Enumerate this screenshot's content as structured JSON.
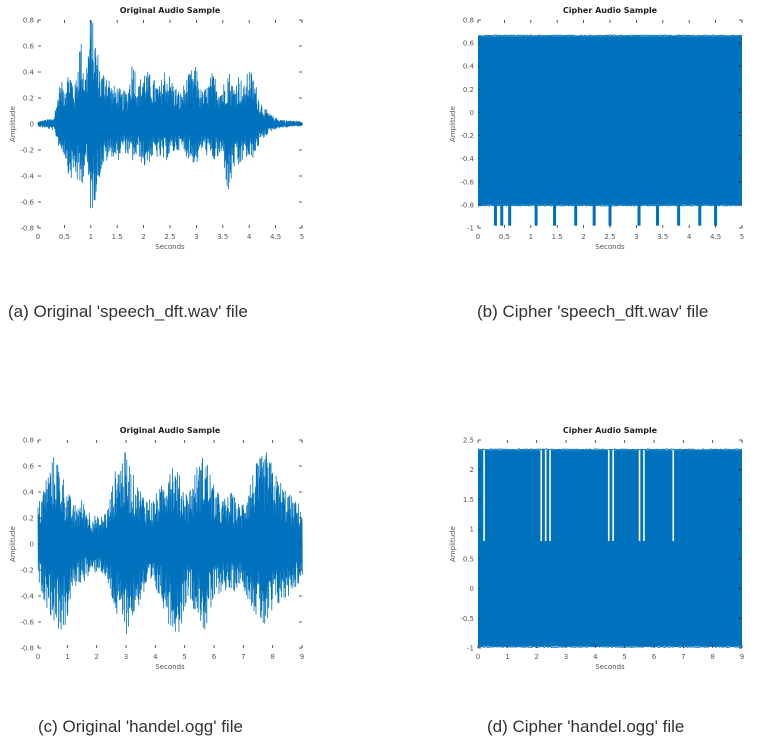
{
  "chart_data": [
    {
      "id": "a",
      "type": "line",
      "title": "Original Audio Sample",
      "xlabel": "Seconds",
      "ylabel": "Amplitude",
      "xlim": [
        0,
        5
      ],
      "ylim": [
        -0.8,
        0.8
      ],
      "xticks": [
        "0",
        "0.5",
        "1",
        "1.5",
        "2",
        "2.5",
        "3",
        "3.5",
        "4",
        "4.5",
        "5"
      ],
      "yticks": [
        "-0.8",
        "-0.6",
        "-0.4",
        "-0.2",
        "0",
        "0.2",
        "0.4",
        "0.6",
        "0.8"
      ],
      "color": "#0072BD",
      "envelope_seconds": [
        0,
        0.3,
        0.4,
        0.5,
        0.6,
        0.7,
        0.8,
        0.9,
        1.0,
        1.1,
        1.2,
        1.3,
        1.4,
        1.5,
        1.6,
        1.7,
        1.8,
        1.9,
        2.0,
        2.1,
        2.2,
        2.3,
        2.4,
        2.5,
        2.6,
        2.7,
        2.8,
        2.9,
        3.0,
        3.1,
        3.2,
        3.3,
        3.4,
        3.5,
        3.6,
        3.7,
        3.8,
        3.9,
        4.0,
        4.1,
        4.2,
        4.3,
        4.4,
        4.5,
        4.6,
        4.7,
        4.8,
        5.0
      ],
      "envelope_upper": [
        0.02,
        0.05,
        0.3,
        0.35,
        0.45,
        0.3,
        0.7,
        0.4,
        0.88,
        0.65,
        0.4,
        0.45,
        0.3,
        0.3,
        0.25,
        0.28,
        0.55,
        0.3,
        0.45,
        0.4,
        0.35,
        0.3,
        0.45,
        0.38,
        0.3,
        0.25,
        0.35,
        0.42,
        0.45,
        0.25,
        0.3,
        0.4,
        0.35,
        0.3,
        0.45,
        0.3,
        0.4,
        0.3,
        0.45,
        0.35,
        0.2,
        0.12,
        0.08,
        0.05,
        0.04,
        0.03,
        0.03,
        0.02
      ],
      "envelope_lower": [
        -0.02,
        -0.05,
        -0.2,
        -0.25,
        -0.45,
        -0.4,
        -0.55,
        -0.3,
        -0.72,
        -0.55,
        -0.35,
        -0.3,
        -0.25,
        -0.3,
        -0.2,
        -0.25,
        -0.3,
        -0.25,
        -0.35,
        -0.3,
        -0.25,
        -0.28,
        -0.3,
        -0.25,
        -0.22,
        -0.2,
        -0.25,
        -0.3,
        -0.32,
        -0.2,
        -0.25,
        -0.3,
        -0.28,
        -0.25,
        -0.6,
        -0.35,
        -0.38,
        -0.25,
        -0.3,
        -0.25,
        -0.15,
        -0.1,
        -0.06,
        -0.04,
        -0.03,
        -0.03,
        -0.02,
        -0.02
      ]
    },
    {
      "id": "b",
      "type": "area",
      "title": "Cipher Audio Sample",
      "xlabel": "Seconds",
      "ylabel": "Amplitude",
      "xlim": [
        0,
        5
      ],
      "ylim": [
        -1,
        0.8
      ],
      "xticks": [
        "0",
        "0.5",
        "1",
        "1.5",
        "2",
        "2.5",
        "3",
        "3.5",
        "4",
        "4.5",
        "5"
      ],
      "yticks": [
        "-1",
        "-0.8",
        "-0.6",
        "-0.4",
        "-0.2",
        "0",
        "0.2",
        "0.4",
        "0.6",
        "0.8"
      ],
      "color": "#0072BD",
      "band_upper": 0.66,
      "band_lower": -0.8,
      "spike_min": -0.98,
      "spike_seconds": [
        0.33,
        0.45,
        0.6,
        1.1,
        1.45,
        1.85,
        2.2,
        2.5,
        3.05,
        3.4,
        3.8,
        4.2,
        4.5
      ]
    },
    {
      "id": "c",
      "type": "line",
      "title": "Original Audio Sample",
      "xlabel": "Seconds",
      "ylabel": "Amplitude",
      "xlim": [
        0,
        9
      ],
      "ylim": [
        -0.8,
        0.8
      ],
      "xticks": [
        "0",
        "1",
        "2",
        "3",
        "4",
        "5",
        "6",
        "7",
        "8",
        "9"
      ],
      "yticks": [
        "-0.8",
        "-0.6",
        "-0.4",
        "-0.2",
        "0",
        "0.2",
        "0.4",
        "0.6",
        "0.8"
      ],
      "color": "#0072BD",
      "envelope_seconds": [
        0,
        0.3,
        0.6,
        0.9,
        1.2,
        1.5,
        1.8,
        2.1,
        2.4,
        2.7,
        3.0,
        3.3,
        3.6,
        3.9,
        4.2,
        4.5,
        4.8,
        5.1,
        5.4,
        5.7,
        6.0,
        6.3,
        6.6,
        6.9,
        7.2,
        7.5,
        7.8,
        8.1,
        8.4,
        8.7,
        9.0
      ],
      "envelope_upper": [
        0.3,
        0.55,
        0.72,
        0.5,
        0.3,
        0.35,
        0.25,
        0.2,
        0.3,
        0.65,
        0.72,
        0.5,
        0.4,
        0.35,
        0.45,
        0.72,
        0.55,
        0.4,
        0.6,
        0.72,
        0.45,
        0.35,
        0.4,
        0.3,
        0.5,
        0.65,
        0.72,
        0.55,
        0.45,
        0.35,
        0.3
      ],
      "envelope_lower": [
        -0.3,
        -0.5,
        -0.65,
        -0.7,
        -0.35,
        -0.3,
        -0.25,
        -0.2,
        -0.35,
        -0.6,
        -0.7,
        -0.55,
        -0.4,
        -0.35,
        -0.45,
        -0.65,
        -0.7,
        -0.4,
        -0.55,
        -0.7,
        -0.45,
        -0.35,
        -0.4,
        -0.3,
        -0.45,
        -0.6,
        -0.7,
        -0.5,
        -0.45,
        -0.35,
        -0.3
      ]
    },
    {
      "id": "d",
      "type": "area",
      "title": "Cipher Audio Sample",
      "xlabel": "Seconds",
      "ylabel": "Amplitude",
      "xlim": [
        0,
        9
      ],
      "ylim": [
        -1,
        2.5
      ],
      "xticks": [
        "0",
        "1",
        "2",
        "3",
        "4",
        "5",
        "6",
        "7",
        "8",
        "9"
      ],
      "yticks": [
        "-1",
        "-0.5",
        "0",
        "0.5",
        "1",
        "1.5",
        "2",
        "2.5"
      ],
      "color": "#0072BD",
      "band_upper": 2.33,
      "band_lower": -0.97,
      "dip_to": 0.8,
      "dip_seconds": [
        0.2,
        2.15,
        2.3,
        2.45,
        4.45,
        4.6,
        5.5,
        5.65,
        6.65
      ]
    }
  ],
  "captions": {
    "a": "(a) Original 'speech_dft.wav' file",
    "b": "(b) Cipher 'speech_dft.wav' file",
    "c": "(c) Original 'handel.ogg' file",
    "d": "(d) Cipher 'handel.ogg' file"
  }
}
